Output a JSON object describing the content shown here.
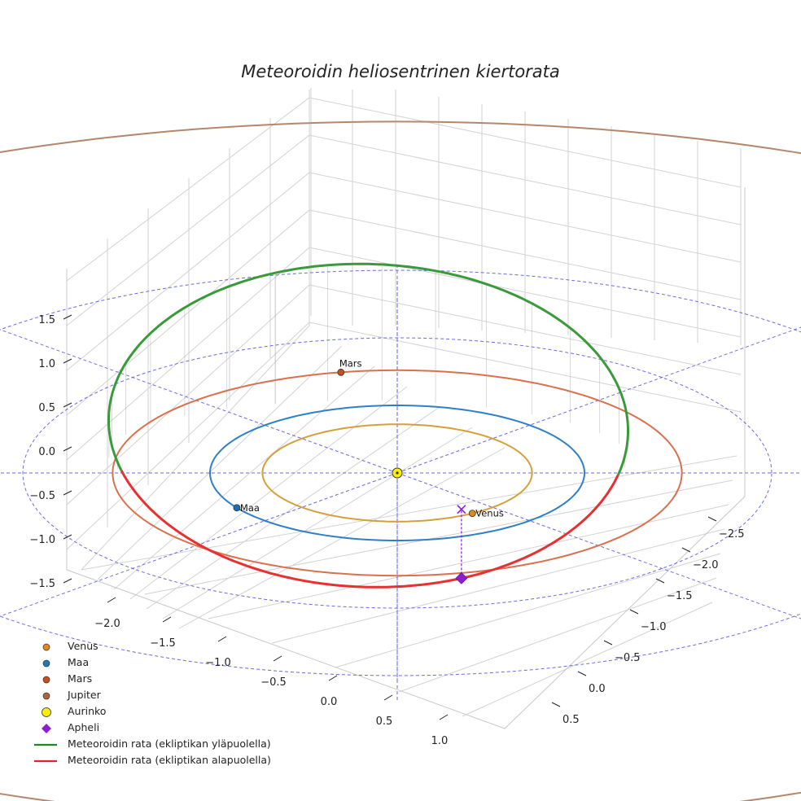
{
  "chart_data": {
    "type": "scatter",
    "title": "Meteoroidin heliosentrinen kiertorata",
    "axes": {
      "x_ticks": [
        "−2.0",
        "−1.5",
        "−1.0",
        "−0.5",
        "0.0",
        "0.5",
        "1.0"
      ],
      "y_ticks": [
        "−2.5",
        "−2.0",
        "−1.5",
        "−1.0",
        "−0.5",
        "0.0",
        "0.5"
      ],
      "z_ticks": [
        "1.5",
        "1.0",
        "0.5",
        "0.0",
        "−0.5",
        "−1.0",
        "−1.5"
      ],
      "grid": true
    },
    "orbits": [
      {
        "name": "Venus",
        "radius_au": 0.72,
        "color": "#d4a03c"
      },
      {
        "name": "Maa",
        "radius_au": 1.0,
        "color": "#2f7fc8"
      },
      {
        "name": "Mars",
        "radius_au": 1.52,
        "color": "#d9704e"
      },
      {
        "name": "Jupiter",
        "radius_au": 5.2,
        "color": "#b5876a"
      }
    ],
    "reference_circles_au": [
      1.0,
      2.0,
      3.0
    ],
    "reference_spokes": 8,
    "meteoroid": {
      "perihelion_au": 1.0,
      "aphelion_au": 1.9,
      "inclination_deg": 55,
      "segment_above": "Meteoroidin rata (ekliptikan yläpuolella)",
      "segment_below": "Meteoroidin rata (ekliptikan alapuolella)",
      "color_above": "#3a9a3a",
      "color_below": "#e83030"
    },
    "points": [
      {
        "name": "Venus",
        "label": "Venus",
        "color": "#e08a1e"
      },
      {
        "name": "Maa",
        "label": "Maa",
        "color": "#1f6fb0"
      },
      {
        "name": "Mars",
        "label": "Mars",
        "color": "#c8501e"
      },
      {
        "name": "Aurinko",
        "label": "",
        "color": "#ffee00"
      },
      {
        "name": "Apheli",
        "label": "",
        "color": "#8a1fcf"
      }
    ],
    "legend": {
      "position": "bottom-left",
      "entries": [
        {
          "label": "Venus",
          "kind": "dot",
          "color": "#e08a1e"
        },
        {
          "label": "Maa",
          "kind": "dot",
          "color": "#1f7ab8"
        },
        {
          "label": "Mars",
          "kind": "dot",
          "color": "#c8501e"
        },
        {
          "label": "Jupiter",
          "kind": "dot",
          "color": "#a9663d"
        },
        {
          "label": "Aurinko",
          "kind": "bigdot",
          "color": "#ffee00"
        },
        {
          "label": "Apheli",
          "kind": "diamond",
          "color": "#8a1fcf"
        },
        {
          "label": "Meteoroidin rata (ekliptikan yläpuolella)",
          "kind": "line",
          "color": "#1a8a1a"
        },
        {
          "label": "Meteoroidin rata (ekliptikan alapuolella)",
          "kind": "line",
          "color": "#e82020"
        }
      ]
    }
  }
}
